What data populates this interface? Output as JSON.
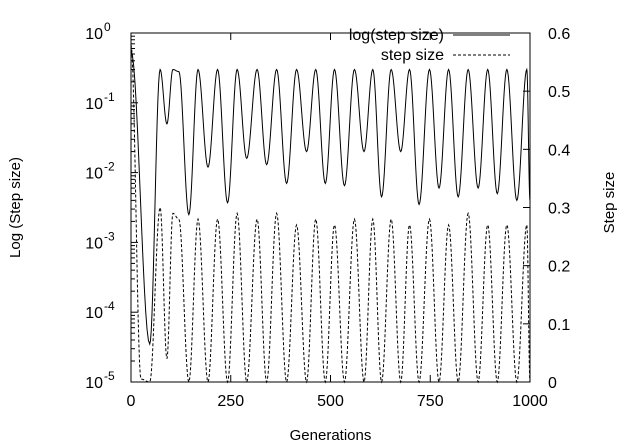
{
  "chart_data": {
    "type": "line",
    "title": "",
    "xlabel": "Generations",
    "ylabel_left": "Log (Step size)",
    "ylabel_right": "Step size",
    "xlim": [
      0,
      1000
    ],
    "ylim_left": [
      1e-05,
      1
    ],
    "ylim_right": [
      0,
      0.6
    ],
    "yscale_left": "log",
    "yscale_right": "linear",
    "grid": false,
    "legend_position": "top-right",
    "x_ticks": [
      "0",
      "250",
      "500",
      "750",
      "1000"
    ],
    "y_left_ticks": [
      {
        "base": "10",
        "exp": "0"
      },
      {
        "base": "10",
        "exp": "-1"
      },
      {
        "base": "10",
        "exp": "-2"
      },
      {
        "base": "10",
        "exp": "-3"
      },
      {
        "base": "10",
        "exp": "-4"
      },
      {
        "base": "10",
        "exp": "-5"
      }
    ],
    "y_right_ticks": [
      "0.6",
      "0.5",
      "0.4",
      "0.3",
      "0.2",
      "0.1",
      "0"
    ],
    "series": [
      {
        "name": "log(step size)",
        "axis": "left",
        "style": "solid",
        "x": [
          0,
          47,
          73,
          90,
          105,
          120,
          145,
          168,
          193,
          217,
          242,
          266,
          290,
          316,
          340,
          365,
          390,
          415,
          440,
          463,
          487,
          510,
          535,
          560,
          584,
          606,
          628,
          652,
          676,
          698,
          722,
          748,
          772,
          796,
          820,
          845,
          870,
          894,
          918,
          942,
          967,
          992,
          1000
        ],
        "y": [
          0.55,
          3.5e-05,
          0.3,
          0.05,
          0.3,
          0.28,
          0.0025,
          0.3,
          0.012,
          0.3,
          0.0037,
          0.3,
          0.016,
          0.3,
          0.013,
          0.3,
          0.007,
          0.3,
          0.02,
          0.3,
          0.007,
          0.3,
          0.0065,
          0.3,
          0.02,
          0.3,
          0.0045,
          0.3,
          0.02,
          0.3,
          0.0035,
          0.3,
          0.006,
          0.3,
          0.0045,
          0.3,
          0.006,
          0.3,
          0.005,
          0.3,
          0.004,
          0.3,
          0.004
        ]
      },
      {
        "name": "step size",
        "axis": "right",
        "style": "dashed",
        "x": [
          0,
          25,
          47,
          73,
          90,
          105,
          120,
          145,
          168,
          193,
          217,
          242,
          266,
          290,
          316,
          340,
          365,
          390,
          415,
          440,
          463,
          487,
          510,
          535,
          560,
          584,
          606,
          628,
          652,
          676,
          698,
          722,
          748,
          772,
          796,
          820,
          845,
          870,
          894,
          918,
          942,
          967,
          992,
          1000
        ],
        "y": [
          0.58,
          0.005,
          0,
          0.3,
          0.04,
          0.29,
          0.28,
          0,
          0.28,
          0,
          0.28,
          0,
          0.29,
          0,
          0.28,
          0,
          0.29,
          0,
          0.27,
          0,
          0.28,
          0,
          0.27,
          0,
          0.28,
          0,
          0.28,
          0,
          0.28,
          0,
          0.27,
          0,
          0.28,
          0,
          0.27,
          0,
          0.29,
          0,
          0.27,
          0,
          0.27,
          0,
          0.27,
          0
        ]
      }
    ]
  }
}
